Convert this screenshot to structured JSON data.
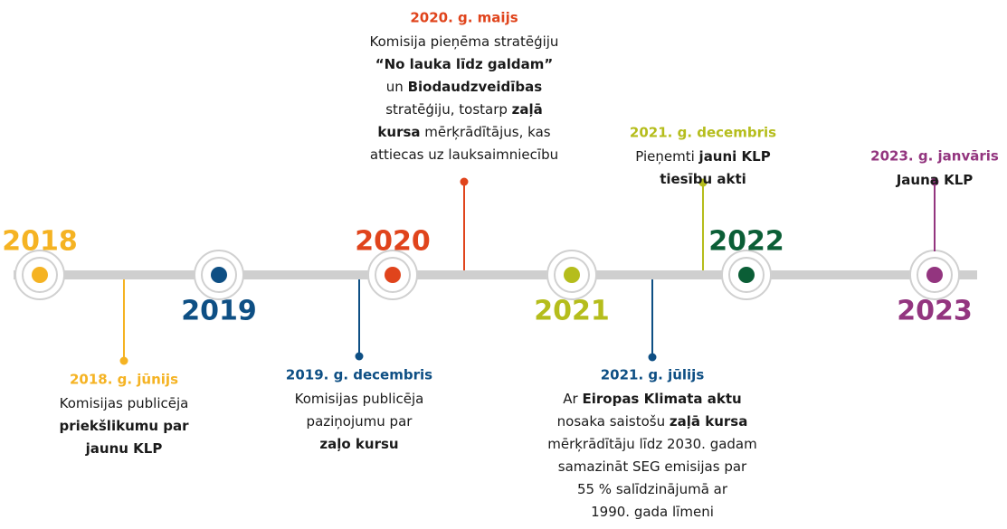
{
  "years": [
    "2018",
    "2019",
    "2020",
    "2021",
    "2022",
    "2023"
  ],
  "events": [
    {
      "date": "2018. g. jūnijs",
      "lines": [
        [
          "Komisijas publicēja"
        ],
        [
          {
            "text": "priekšlikumu par",
            "bold": true
          }
        ],
        [
          {
            "text": "jaunu KLP",
            "bold": true
          }
        ]
      ]
    },
    {
      "date": "2019. g. decembris",
      "lines": [
        [
          "Komisijas publicēja"
        ],
        [
          "paziņojumu par"
        ],
        [
          {
            "text": "zaļo kursu",
            "bold": true
          }
        ]
      ]
    },
    {
      "date": "2020. g. maijs",
      "lines": [
        [
          "Komisija pieņēma stratēģiju"
        ],
        [
          {
            "text": "“No lauka līdz galdam”",
            "bold": true
          }
        ],
        [
          "un ",
          {
            "text": "Biodaudzveidības",
            "bold": true
          }
        ],
        [
          "stratēģiju, tostarp ",
          {
            "text": "zaļā",
            "bold": true
          }
        ],
        [
          {
            "text": "kursa",
            "bold": true
          },
          " mērķrādītājus, kas"
        ],
        [
          "attiecas uz lauksaimniecību"
        ]
      ]
    },
    {
      "date": "2021. g. jūlijs",
      "lines": [
        [
          "Ar ",
          {
            "text": "Eiropas Klimata aktu",
            "bold": true
          }
        ],
        [
          "nosaka saistošu ",
          {
            "text": "zaļā kursa",
            "bold": true
          }
        ],
        [
          "mērķrādītāju līdz 2030. gadam"
        ],
        [
          "samazināt SEG emisijas par"
        ],
        [
          "55 % salīdzinājumā ar"
        ],
        [
          "1990. gada līmeni"
        ]
      ]
    },
    {
      "date": "2021. g. decembris",
      "lines": [
        [
          "Pieņemti ",
          {
            "text": "jauni KLP",
            "bold": true
          }
        ],
        [
          {
            "text": "tiesību akti",
            "bold": true
          }
        ]
      ]
    },
    {
      "date": "2023. g. janvāris",
      "lines": [
        [
          {
            "text": "Jauna KLP",
            "bold": true
          }
        ]
      ]
    }
  ]
}
